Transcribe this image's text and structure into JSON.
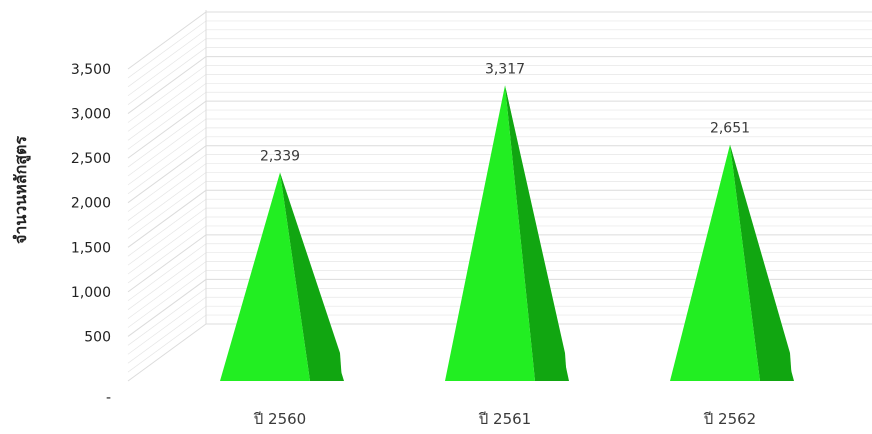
{
  "chart_data": {
    "type": "bar",
    "style": "3d-pyramid",
    "title": "",
    "xlabel": "",
    "ylabel": "จำนวนหลักสูตร",
    "categories": [
      "ปี 2560",
      "ปี 2561",
      "ปี 2562"
    ],
    "values": [
      2339,
      3317,
      2651
    ],
    "value_labels": [
      "2,339",
      "3,317",
      "2,651"
    ],
    "ylim": [
      0,
      3500
    ],
    "yticks": [
      0,
      500,
      1000,
      1500,
      2000,
      2500,
      3000,
      3500
    ],
    "ytick_labels": [
      "-",
      "500",
      "1,000",
      "1,500",
      "2,000",
      "2,500",
      "3,000",
      "3,500"
    ],
    "grid": true,
    "legend": "none",
    "colors": {
      "face_light": "#22ee22",
      "face_dark": "#11a611",
      "grid": "#dcdcdc"
    }
  }
}
